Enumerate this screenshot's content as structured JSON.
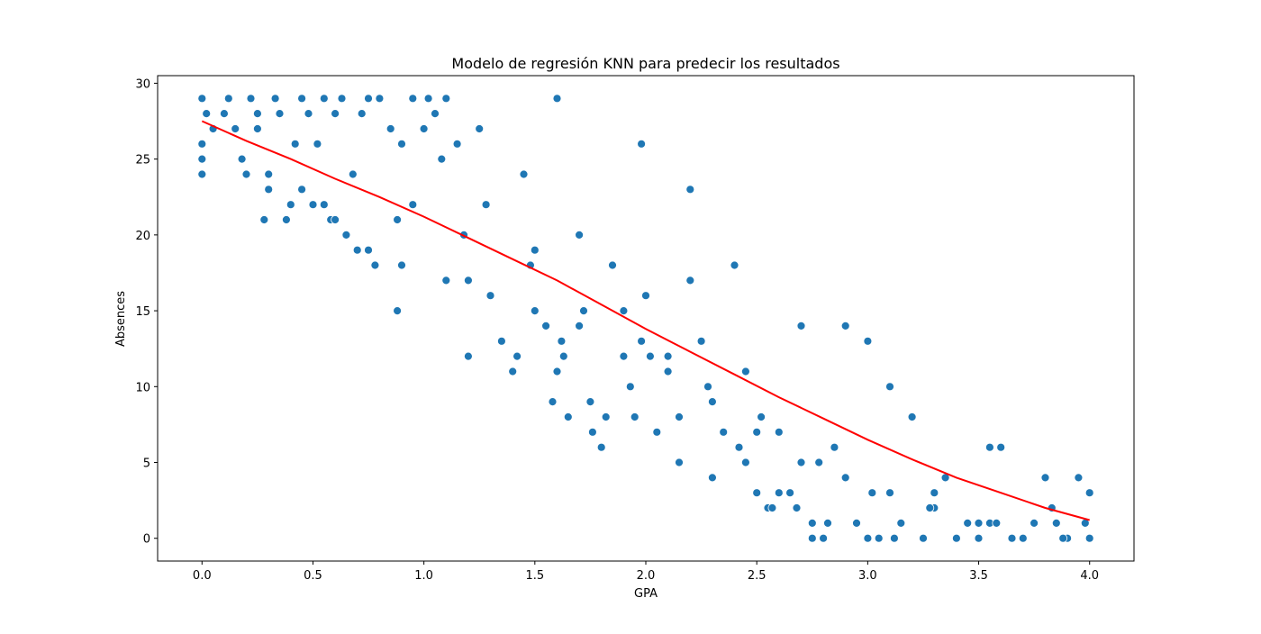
{
  "chart_data": {
    "type": "scatter",
    "title": "Modelo de regresión KNN para predecir los resultados",
    "xlabel": "GPA",
    "ylabel": "Absences",
    "xlim": [
      -0.2,
      4.2
    ],
    "ylim": [
      -1.5,
      30.5
    ],
    "xticks": [
      "0.0",
      "0.5",
      "1.0",
      "1.5",
      "2.0",
      "2.5",
      "3.0",
      "3.5",
      "4.0"
    ],
    "yticks": [
      "0",
      "5",
      "10",
      "15",
      "20",
      "25",
      "30"
    ],
    "grid": false,
    "legend": "none",
    "colors": {
      "points": "#1f77b4",
      "line": "#ff0000"
    },
    "series": [
      {
        "kind": "points",
        "x": [
          0.0,
          0.02,
          0.05,
          0.0,
          0.0,
          0.0,
          0.12,
          0.15,
          0.2,
          0.22,
          0.25,
          0.3,
          0.28,
          0.33,
          0.35,
          0.4,
          0.38,
          0.45,
          0.48,
          0.5,
          0.52,
          0.55,
          0.58,
          0.6,
          0.63,
          0.65,
          0.7,
          0.72,
          0.75,
          0.78,
          0.8,
          0.85,
          0.88,
          0.9,
          0.95,
          1.0,
          1.02,
          1.05,
          1.08,
          1.1,
          1.15,
          1.2,
          1.25,
          1.28,
          1.3,
          1.35,
          1.4,
          1.45,
          1.5,
          1.55,
          1.6,
          1.63,
          1.65,
          1.7,
          1.75,
          1.8,
          1.85,
          1.9,
          1.95,
          1.98,
          2.0,
          2.05,
          2.1,
          2.15,
          2.2,
          2.25,
          2.3,
          2.35,
          2.4,
          2.45,
          2.5,
          2.55,
          2.6,
          2.65,
          2.7,
          2.75,
          2.8,
          2.85,
          2.9,
          2.95,
          3.0,
          3.05,
          3.1,
          3.15,
          3.2,
          3.25,
          3.3,
          3.35,
          3.4,
          3.45,
          3.5,
          3.55,
          3.6,
          3.7,
          3.8,
          3.85,
          3.9,
          3.95,
          4.0,
          4.0,
          0.18,
          0.3,
          0.45,
          0.6,
          0.75,
          0.9,
          1.1,
          1.3,
          1.5,
          1.7,
          1.9,
          2.1,
          2.3,
          2.5,
          2.7,
          2.9,
          3.1,
          3.3,
          3.5,
          3.75,
          0.25,
          0.55,
          0.88,
          1.2,
          1.42,
          1.58,
          1.62,
          1.76,
          1.93,
          2.15,
          2.42,
          2.57,
          2.75,
          3.12,
          3.4,
          3.55,
          3.65,
          3.83,
          3.98,
          2.2,
          1.98,
          1.6,
          1.82,
          2.6,
          2.45,
          2.68,
          2.82,
          3.0,
          0.1,
          0.42,
          0.68,
          0.95,
          1.18,
          1.48,
          1.72,
          2.02,
          2.28,
          2.52,
          2.78,
          3.02,
          3.28,
          3.58,
          3.88
        ],
        "y": [
          29,
          28,
          27,
          26,
          25,
          24,
          29,
          27,
          24,
          29,
          28,
          23,
          21,
          29,
          28,
          22,
          21,
          29,
          28,
          22,
          26,
          29,
          21,
          28,
          29,
          20,
          19,
          28,
          29,
          18,
          29,
          27,
          15,
          26,
          29,
          27,
          29,
          28,
          25,
          29,
          26,
          12,
          27,
          22,
          16,
          13,
          11,
          24,
          19,
          14,
          29,
          12,
          8,
          20,
          9,
          6,
          18,
          15,
          8,
          26,
          16,
          7,
          12,
          5,
          23,
          13,
          4,
          7,
          18,
          11,
          3,
          2,
          7,
          3,
          14,
          1,
          0,
          6,
          14,
          1,
          13,
          0,
          10,
          1,
          8,
          0,
          3,
          4,
          0,
          1,
          0,
          6,
          6,
          0,
          4,
          1,
          0,
          4,
          3,
          0,
          25,
          24,
          23,
          21,
          19,
          18,
          17,
          16,
          15,
          14,
          12,
          11,
          9,
          7,
          5,
          4,
          3,
          2,
          1,
          1,
          27,
          22,
          21,
          17,
          12,
          9,
          13,
          7,
          10,
          8,
          6,
          2,
          0,
          0,
          0,
          1,
          0,
          2,
          1,
          17,
          13,
          11,
          8,
          3,
          5,
          2,
          1,
          0,
          28,
          26,
          24,
          22,
          20,
          18,
          15,
          12,
          10,
          8,
          5,
          3,
          2,
          1,
          0
        ]
      },
      {
        "kind": "line",
        "x": [
          0.0,
          0.2,
          0.4,
          0.6,
          0.8,
          1.0,
          1.2,
          1.4,
          1.6,
          1.8,
          2.0,
          2.2,
          2.4,
          2.6,
          2.8,
          3.0,
          3.2,
          3.4,
          3.6,
          3.8,
          4.0
        ],
        "y": [
          27.5,
          26.2,
          25.0,
          23.7,
          22.5,
          21.2,
          19.8,
          18.4,
          17.0,
          15.4,
          13.8,
          12.3,
          10.8,
          9.3,
          7.9,
          6.5,
          5.2,
          4.0,
          3.0,
          2.0,
          1.2
        ]
      }
    ]
  }
}
